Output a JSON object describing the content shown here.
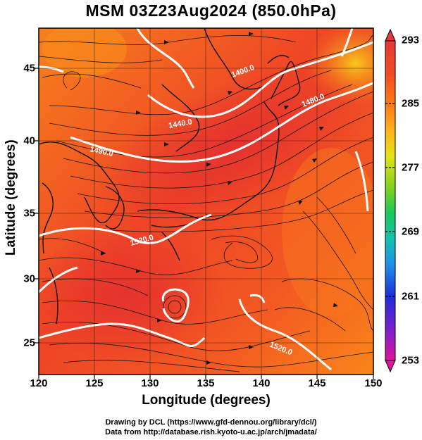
{
  "title": "MSM 03Z23Aug2024 (850.0hPa)",
  "axes": {
    "xlabel": "Longitude (degrees)",
    "ylabel": "Latitude  (degrees)",
    "xticks": [
      "120",
      "125",
      "130",
      "135",
      "140",
      "145",
      "150"
    ],
    "yticks": [
      "25",
      "30",
      "35",
      "40",
      "45"
    ],
    "xlim": [
      120,
      150
    ],
    "ylim": [
      22.4,
      47.6
    ]
  },
  "colorbar": {
    "labels": [
      "293",
      "285",
      "277",
      "269",
      "261",
      "253"
    ],
    "range": [
      253,
      293
    ],
    "colors": [
      "#e0149a",
      "#7a20d0",
      "#1a2fd8",
      "#1f90e8",
      "#12c2b0",
      "#19c85a",
      "#7fd21e",
      "#e6e214",
      "#ffb21a",
      "#ff7a18",
      "#f24a24",
      "#e5383a"
    ]
  },
  "contours": {
    "color": "#ffffff",
    "labels": [
      "1400.0",
      "1480.0",
      "1440.0",
      "1490.0",
      "1520.0",
      "1520.0"
    ]
  },
  "map_colors": {
    "warm": "#f5541e",
    "warmer": "#f9761d",
    "hot": "#ec3a2c",
    "gridline": "#111111"
  },
  "credits": {
    "line1": "Drawing by DCL (https://www.gfd-dennou.org/library/dcl/)",
    "line2": "Data from http://database.rish.kyoto-u.ac.jp/arch/jmadata/"
  }
}
